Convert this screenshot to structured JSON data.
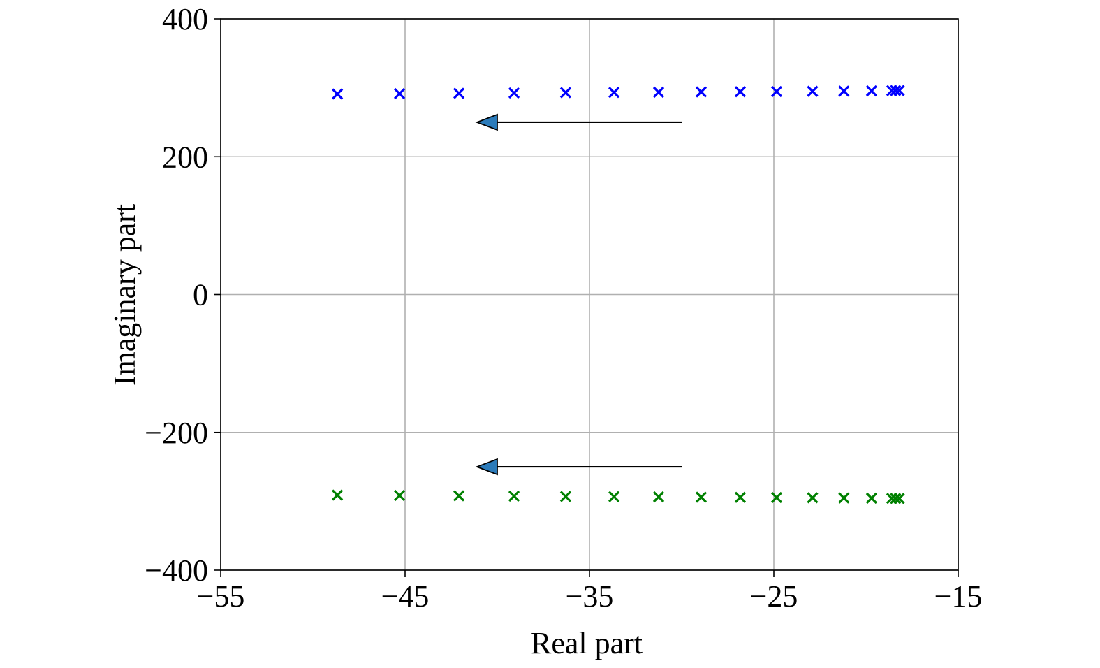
{
  "chart_data": {
    "type": "scatter",
    "xlabel": "Real part",
    "ylabel": "Imaginary part",
    "xlim": [
      -55,
      -15
    ],
    "ylim": [
      -400,
      400
    ],
    "xticks": [
      -55,
      -45,
      -35,
      -25,
      -15
    ],
    "yticks": [
      -400,
      -200,
      0,
      200,
      400
    ],
    "xtick_labels": [
      "−55",
      "−45",
      "−35",
      "−25",
      "−15"
    ],
    "ytick_labels": [
      "−400",
      "−200",
      "0",
      "200",
      "400"
    ],
    "grid": true,
    "marker": "x",
    "series": [
      {
        "color": "#0000ff",
        "x": [
          -48.67,
          -45.3,
          -42.08,
          -39.09,
          -36.29,
          -33.67,
          -31.25,
          -28.94,
          -26.82,
          -24.85,
          -22.9,
          -21.2,
          -19.7,
          -18.6,
          -18.4,
          -18.2
        ],
        "y": [
          291,
          291.5,
          292,
          292.5,
          293,
          293.3,
          293.6,
          294,
          294.3,
          294.6,
          294.9,
          295.2,
          295.5,
          295.8,
          295.9,
          296
        ]
      },
      {
        "color": "#008000",
        "x": [
          -48.67,
          -45.3,
          -42.08,
          -39.09,
          -36.29,
          -33.67,
          -31.25,
          -28.94,
          -26.82,
          -24.85,
          -22.9,
          -21.2,
          -19.7,
          -18.6,
          -18.4,
          -18.2
        ],
        "y": [
          -291,
          -291.5,
          -292,
          -292.5,
          -293,
          -293.3,
          -293.6,
          -294,
          -294.3,
          -294.6,
          -294.9,
          -295.2,
          -295.5,
          -295.8,
          -295.9,
          -296
        ]
      }
    ],
    "annotations": [
      {
        "type": "arrow",
        "from": [
          -30,
          250
        ],
        "to": [
          -41.1,
          250
        ],
        "head_color": "#2b7bba"
      },
      {
        "type": "arrow",
        "from": [
          -30,
          -250
        ],
        "to": [
          -41.1,
          -250
        ],
        "head_color": "#2b7bba"
      }
    ]
  }
}
